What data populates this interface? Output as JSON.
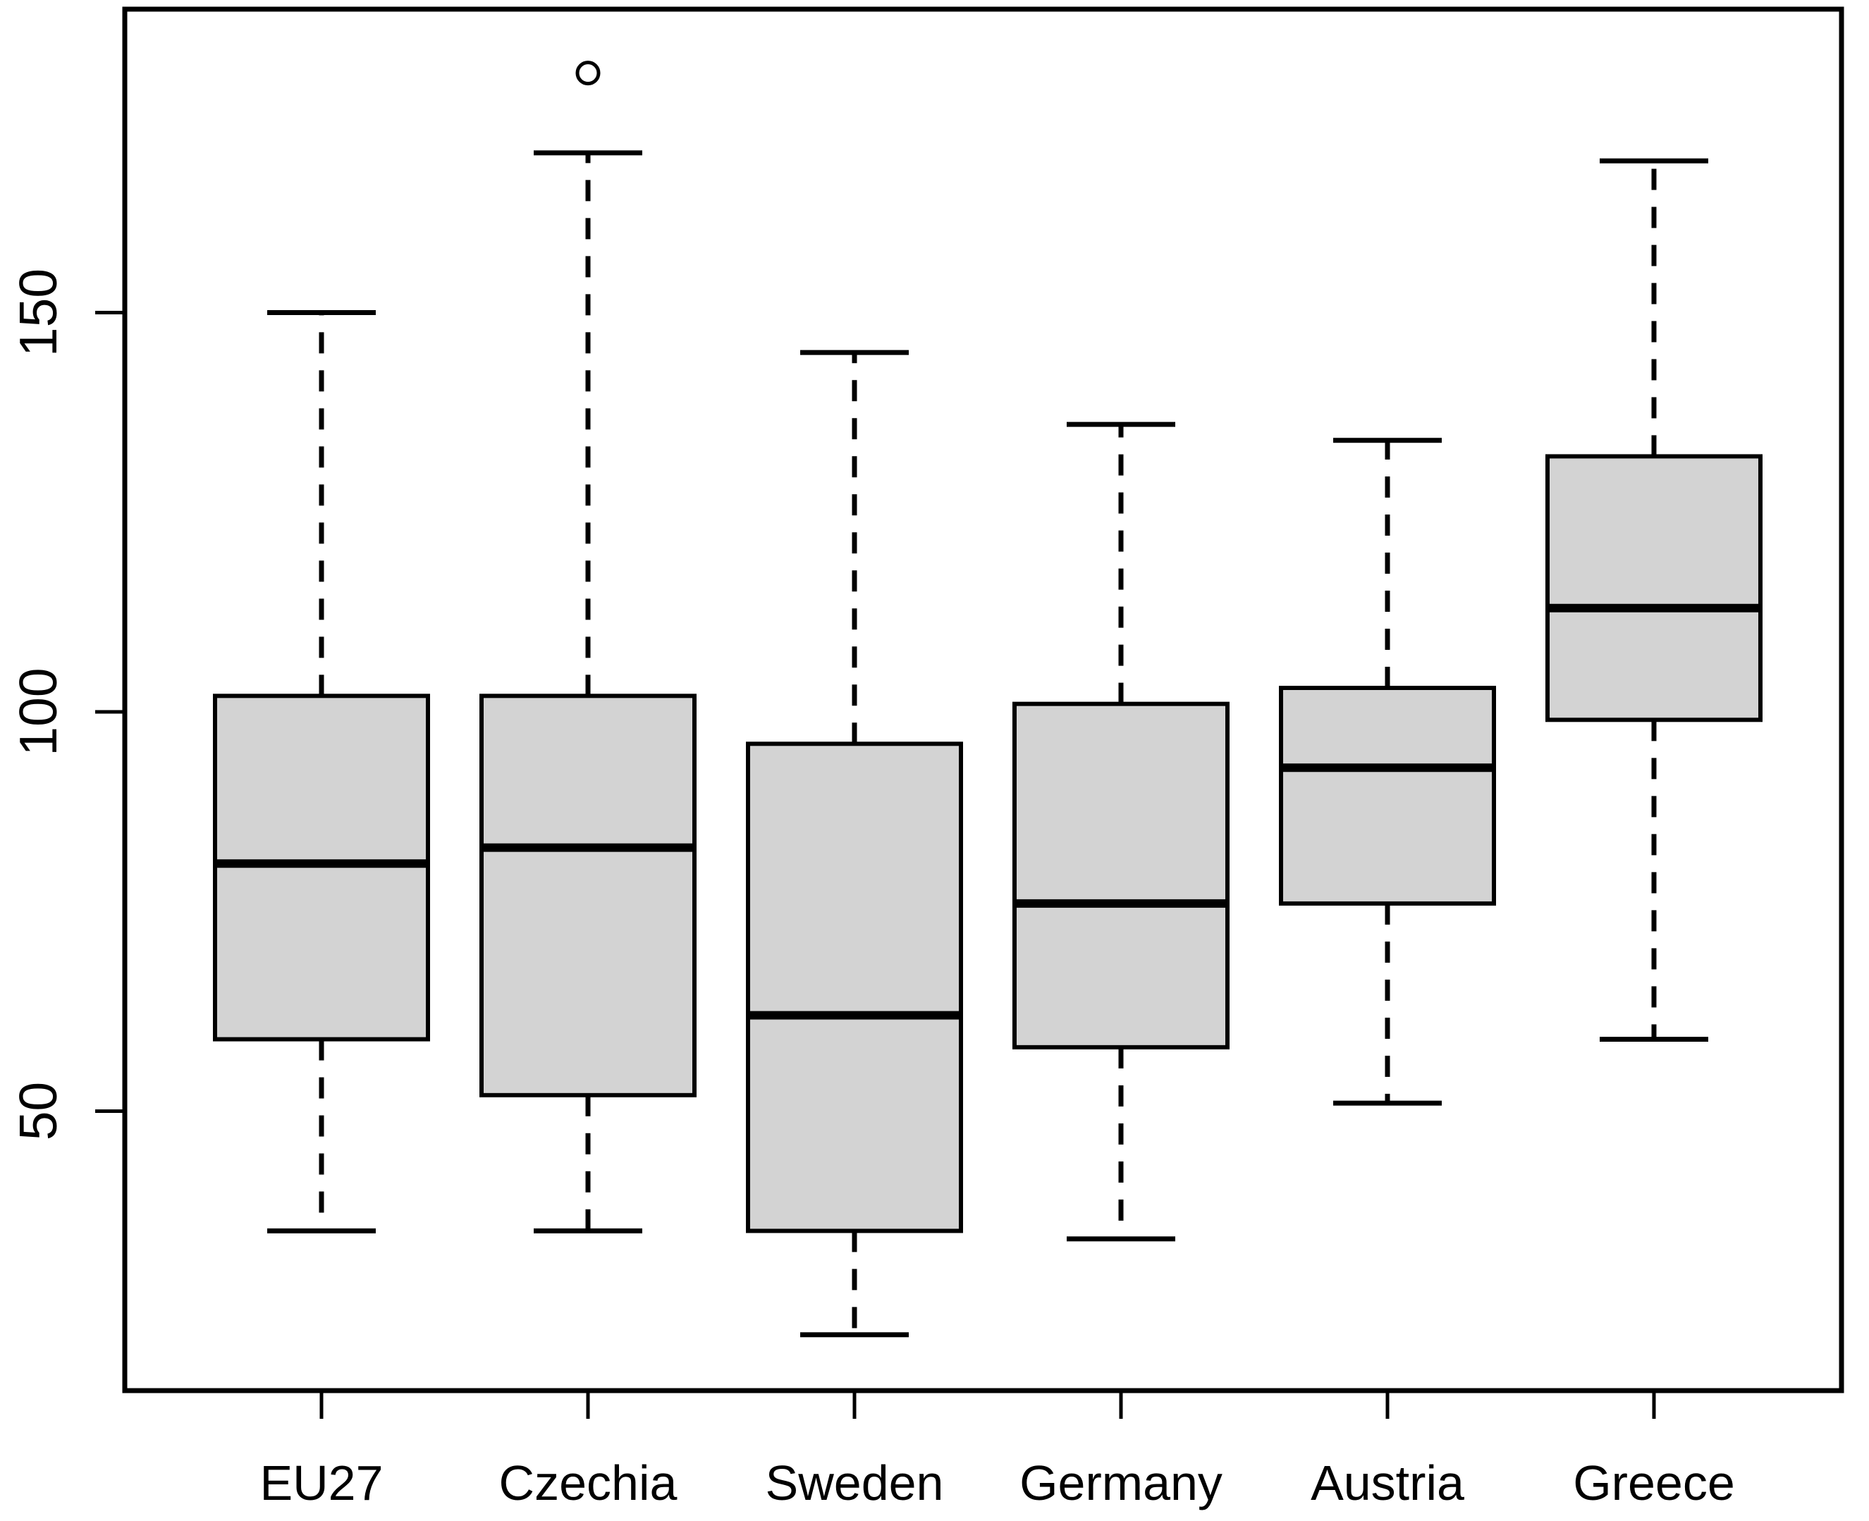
{
  "chart_data": {
    "type": "boxplot",
    "title": "",
    "xlabel": "",
    "ylabel": "",
    "categories": [
      "EU27",
      "Czechia",
      "Sweden",
      "Germany",
      "Austria",
      "Greece"
    ],
    "y_ticks": [
      50,
      100,
      150
    ],
    "ylim": [
      15,
      188
    ],
    "grid": false,
    "legend": null,
    "series": [
      {
        "name": "EU27",
        "whisker_low": 35,
        "q1": 59,
        "median": 81,
        "q3": 102,
        "whisker_high": 150,
        "outliers": []
      },
      {
        "name": "Czechia",
        "whisker_low": 35,
        "q1": 52,
        "median": 83,
        "q3": 102,
        "whisker_high": 170,
        "outliers": [
          180
        ]
      },
      {
        "name": "Sweden",
        "whisker_low": 22,
        "q1": 35,
        "median": 62,
        "q3": 96,
        "whisker_high": 145,
        "outliers": []
      },
      {
        "name": "Germany",
        "whisker_low": 34,
        "q1": 58,
        "median": 76,
        "q3": 101,
        "whisker_high": 136,
        "outliers": []
      },
      {
        "name": "Austria",
        "whisker_low": 51,
        "q1": 76,
        "median": 93,
        "q3": 103,
        "whisker_high": 134,
        "outliers": []
      },
      {
        "name": "Greece",
        "whisker_low": 59,
        "q1": 99,
        "median": 113,
        "q3": 132,
        "whisker_high": 169,
        "outliers": []
      }
    ],
    "colors": {
      "box_fill": "#d3d3d3",
      "line": "#000000",
      "background": "#ffffff"
    }
  }
}
